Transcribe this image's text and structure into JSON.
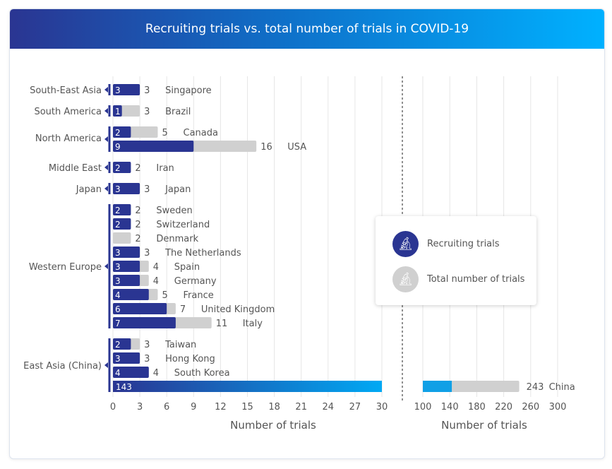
{
  "chart_data": {
    "type": "bar",
    "title": "Recruiting trials vs. total number of trials in COVID-19",
    "xlabel": "Number of trials",
    "xlabel_right": "Number of trials",
    "axis_break": true,
    "xlim_left": [
      0,
      30
    ],
    "xticks_left": [
      0,
      3,
      6,
      9,
      12,
      15,
      18,
      21,
      24,
      27,
      30
    ],
    "xlim_right": [
      100,
      300
    ],
    "xticks_right": [
      100,
      140,
      180,
      220,
      260,
      300
    ],
    "grid": true,
    "legend_position": "center-right",
    "colors": {
      "recruiting": "#2a3592",
      "recruiting_gradient_end": "#00a9f4",
      "total": "#d0d0d0"
    },
    "series": [
      {
        "name": "Recruiting trials"
      },
      {
        "name": "Total number of trials"
      }
    ],
    "regions": [
      {
        "name": "South-East Asia",
        "rows": [
          {
            "country": "Singapore",
            "recruiting": 3,
            "total": 3
          }
        ]
      },
      {
        "name": "South America",
        "rows": [
          {
            "country": "Brazil",
            "recruiting": 1,
            "total": 3
          }
        ]
      },
      {
        "name": "North America",
        "rows": [
          {
            "country": "Canada",
            "recruiting": 2,
            "total": 5
          },
          {
            "country": "USA",
            "recruiting": 9,
            "total": 16
          }
        ]
      },
      {
        "name": "Middle East",
        "rows": [
          {
            "country": "Iran",
            "recruiting": 2,
            "total": 2
          }
        ]
      },
      {
        "name": "Japan",
        "rows": [
          {
            "country": "Japan",
            "recruiting": 3,
            "total": 3
          }
        ]
      },
      {
        "name": "Western Europe",
        "rows": [
          {
            "country": "Sweden",
            "recruiting": 2,
            "total": 2
          },
          {
            "country": "Switzerland",
            "recruiting": 2,
            "total": 2
          },
          {
            "country": "Denmark",
            "recruiting": 0,
            "total": 2
          },
          {
            "country": "The Netherlands",
            "recruiting": 3,
            "total": 3
          },
          {
            "country": "Spain",
            "recruiting": 3,
            "total": 4
          },
          {
            "country": "Germany",
            "recruiting": 3,
            "total": 4
          },
          {
            "country": "France",
            "recruiting": 4,
            "total": 5
          },
          {
            "country": "United Kingdom",
            "recruiting": 6,
            "total": 7
          },
          {
            "country": "Italy",
            "recruiting": 7,
            "total": 11
          }
        ]
      },
      {
        "name": "East Asia (China)",
        "rows": [
          {
            "country": "Taiwan",
            "recruiting": 2,
            "total": 3
          },
          {
            "country": "Hong Kong",
            "recruiting": 3,
            "total": 3
          },
          {
            "country": "South Korea",
            "recruiting": 4,
            "total": 4
          },
          {
            "country": "China",
            "recruiting": 143,
            "total": 243
          }
        ]
      }
    ]
  },
  "legend": {
    "recruiting_label": "Recruiting trials",
    "total_label": "Total number of trials",
    "icon": "microscope-icon"
  }
}
